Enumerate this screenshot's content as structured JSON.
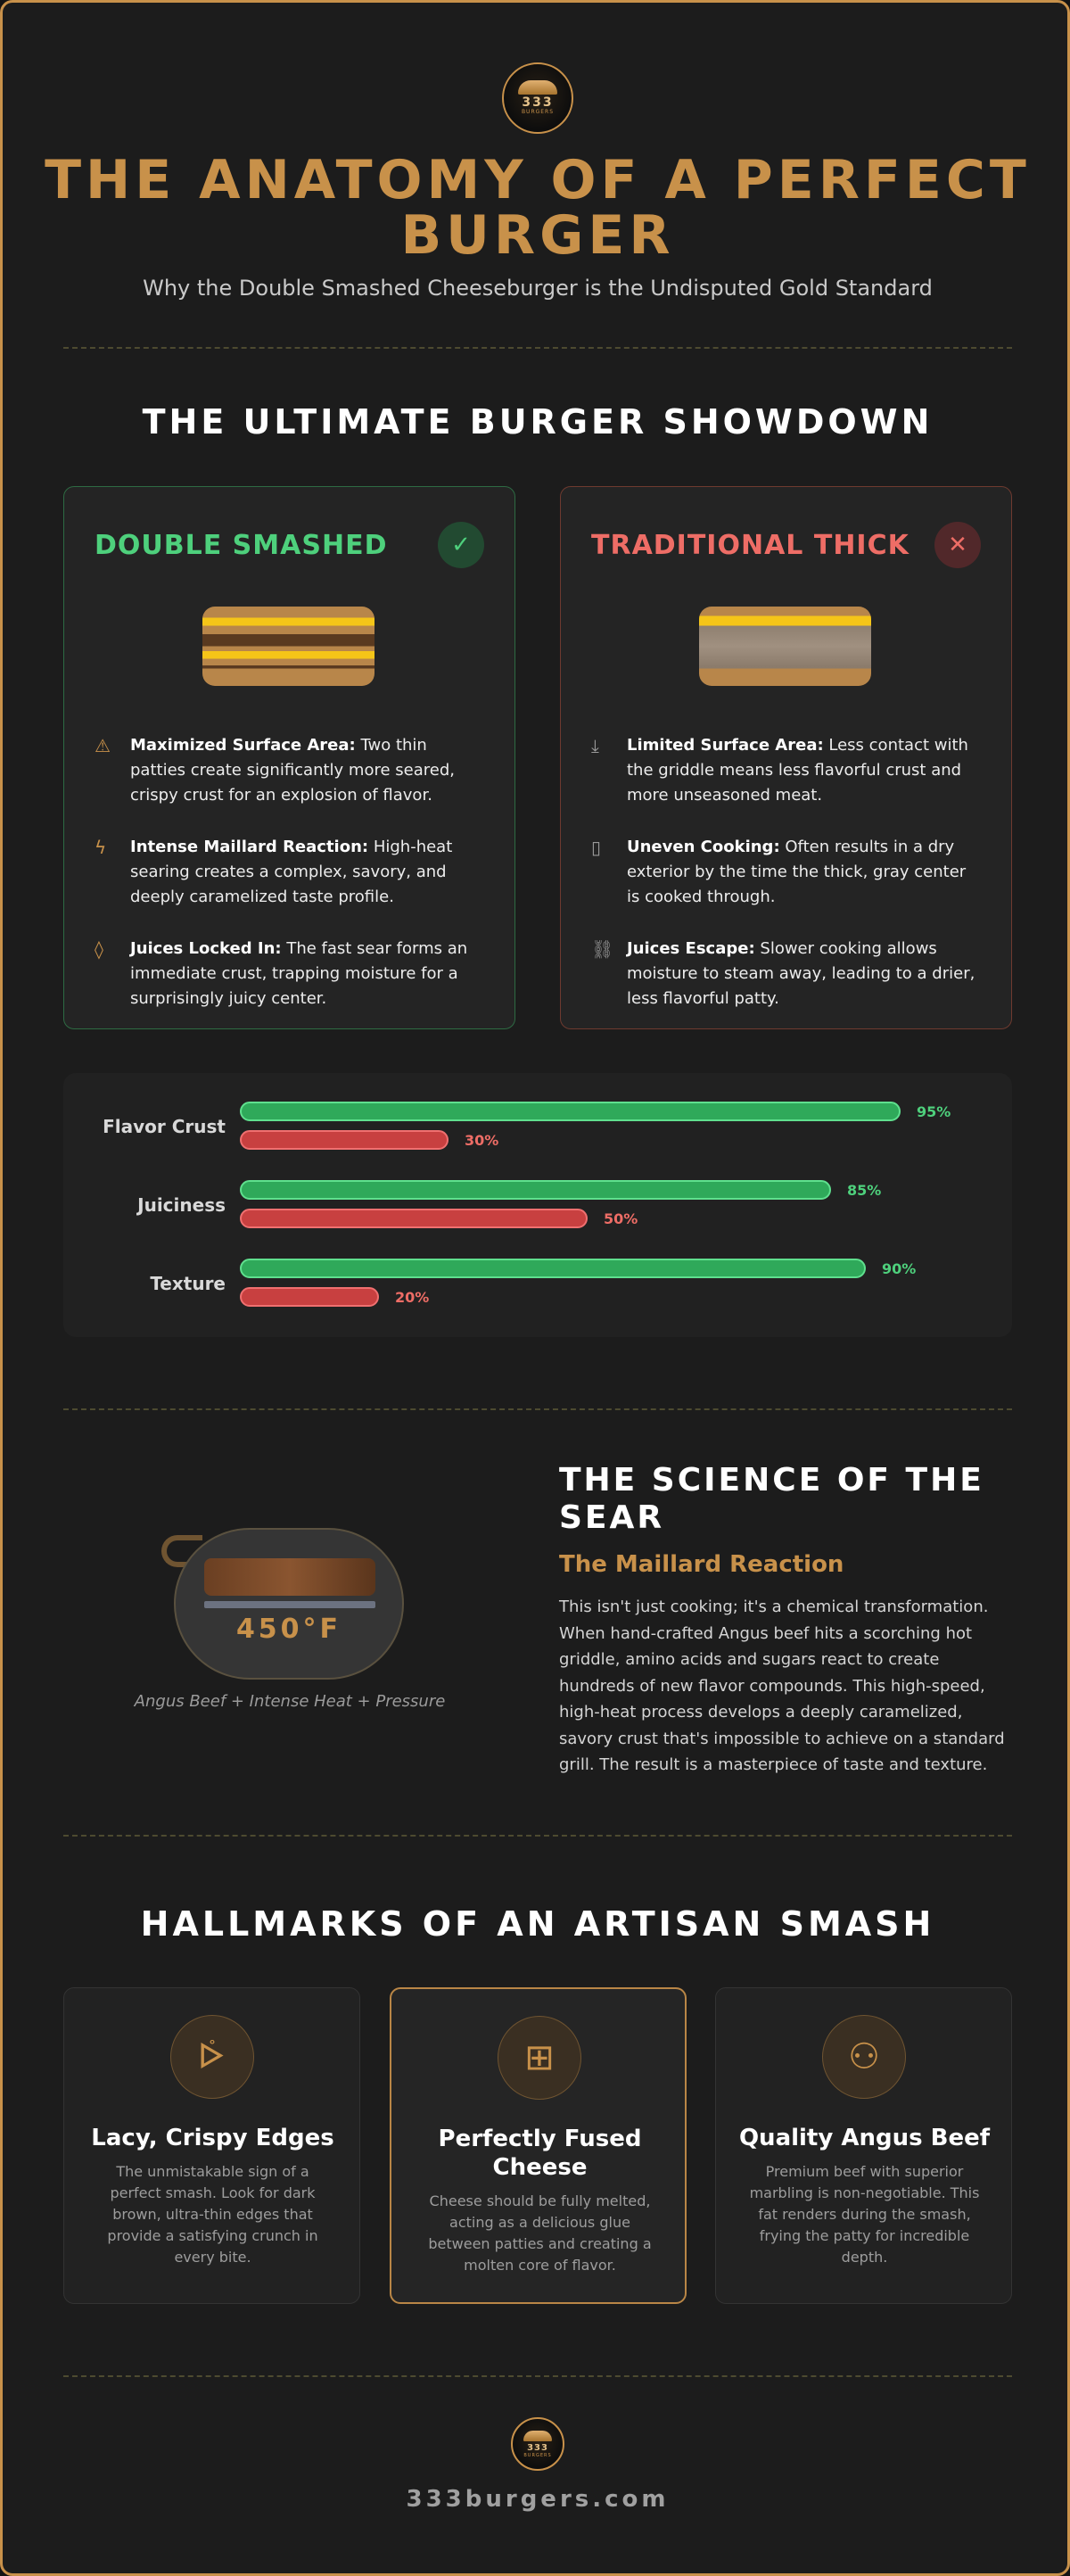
{
  "header": {
    "logo_number": "333",
    "logo_word": "BURGERS",
    "title": "THE ANATOMY OF A PERFECT BURGER",
    "subtitle": "Why the Double Smashed Cheeseburger is the Undisputed Gold Standard"
  },
  "showdown": {
    "heading": "THE ULTIMATE BURGER SHOWDOWN",
    "smashed": {
      "title": "DOUBLE SMASHED",
      "badge_icon": "check-icon",
      "features": [
        {
          "icon": "triangle-icon",
          "bold": "Maximized Surface Area:",
          "text": " Two thin patties create significantly more seared, crispy crust for an explosion of flavor."
        },
        {
          "icon": "flame-icon",
          "bold": "Intense Maillard Reaction:",
          "text": " High-heat searing creates a complex, savory, and deeply caramelized taste profile."
        },
        {
          "icon": "droplet-icon",
          "bold": "Juices Locked In:",
          "text": " The fast sear forms an immediate crust, trapping moisture for a surprisingly juicy center."
        }
      ]
    },
    "thick": {
      "title": "TRADITIONAL THICK",
      "badge_icon": "x-icon",
      "features": [
        {
          "icon": "download-icon",
          "bold": "Limited Surface Area:",
          "text": " Less contact with the griddle means less flavorful crust and more unseasoned meat."
        },
        {
          "icon": "file-icon",
          "bold": "Uneven Cooking:",
          "text": " Often results in a dry exterior by the time the thick, gray center is cooked through."
        },
        {
          "icon": "broken-link-icon",
          "bold": "Juices Escape:",
          "text": " Slower cooking allows moisture to steam away, leading to a drier, less flavorful patty."
        }
      ]
    }
  },
  "comparison": {
    "rows": [
      {
        "label": "Flavor Crust",
        "smashed": 95,
        "smashed_text": "95%",
        "thick": 30,
        "thick_text": "30%"
      },
      {
        "label": "Juiciness",
        "smashed": 85,
        "smashed_text": "85%",
        "thick": 50,
        "thick_text": "50%"
      },
      {
        "label": "Texture",
        "smashed": 90,
        "smashed_text": "90%",
        "thick": 20,
        "thick_text": "20%"
      }
    ],
    "colors": {
      "smashed": "#2fa95a",
      "thick": "#c84040"
    }
  },
  "science": {
    "temperature": "450°F",
    "caption": "Angus Beef + Intense Heat + Pressure",
    "heading": "THE SCIENCE OF THE SEAR",
    "subheading": "The Maillard Reaction",
    "body": "This isn't just cooking; it's a chemical transformation. When hand-crafted Angus beef hits a scorching hot griddle, amino acids and sugars react to create hundreds of new flavor compounds. This high-speed, high-heat process develops a deeply caramelized, savory crust that's impossible to achieve on a standard grill. The result is a masterpiece of taste and texture."
  },
  "hallmarks": {
    "heading": "HALLMARKS OF AN ARTISAN SMASH",
    "items": [
      {
        "icon": "crispy-edge-icon",
        "title": "Lacy, Crispy Edges",
        "body": "The unmistakable sign of a perfect smash. Look for dark brown, ultra-thin edges that provide a satisfying crunch in every bite."
      },
      {
        "icon": "plus-square-icon",
        "title": "Perfectly Fused Cheese",
        "body": "Cheese should be fully melted, acting as a delicious glue between patties and creating a molten core of flavor."
      },
      {
        "icon": "users-icon",
        "title": "Quality Angus Beef",
        "body": "Premium beef with superior marbling is non-negotiable. This fat renders during the smash, frying the patty for incredible depth."
      }
    ]
  },
  "footer": {
    "logo_number": "333",
    "logo_word": "BURGERS",
    "site": "333burgers.com"
  },
  "colors": {
    "accent": "#c8914a",
    "good": "#4ed07c",
    "bad": "#ee6d66",
    "background": "#1c1c1c"
  }
}
